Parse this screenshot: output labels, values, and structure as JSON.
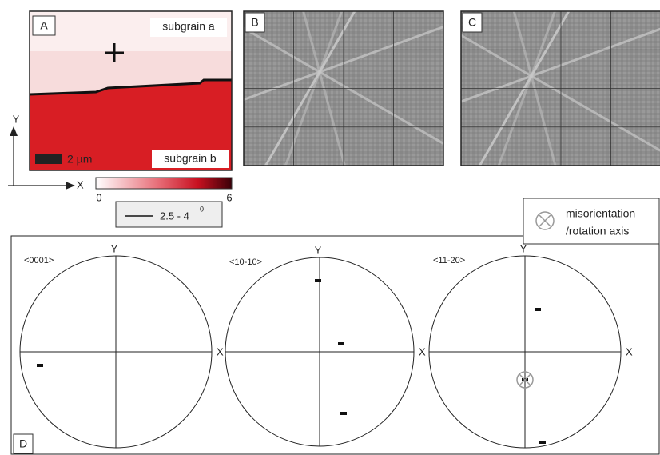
{
  "panels": {
    "a": {
      "label": "A",
      "top_label": "subgrain a",
      "bottom_label": "subgrain b",
      "scale": "2 µm"
    },
    "b": {
      "label": "B"
    },
    "c": {
      "label": "C"
    },
    "d": {
      "label": "D"
    }
  },
  "axes": {
    "y": "Y",
    "x": "X"
  },
  "colorbar": {
    "min": "0",
    "max": "6"
  },
  "boundary_legend": {
    "text": "2.5 - 4",
    "superscript": "0"
  },
  "misorientation_legend": [
    "misorientation",
    "/rotation axis"
  ],
  "pole_figures": [
    {
      "label": "<0001>",
      "y": "Y",
      "x": "X"
    },
    {
      "label": "<10-10>",
      "y": "Y",
      "x": "X"
    },
    {
      "label": "<11-20>",
      "y": "Y",
      "x": "X"
    }
  ]
}
